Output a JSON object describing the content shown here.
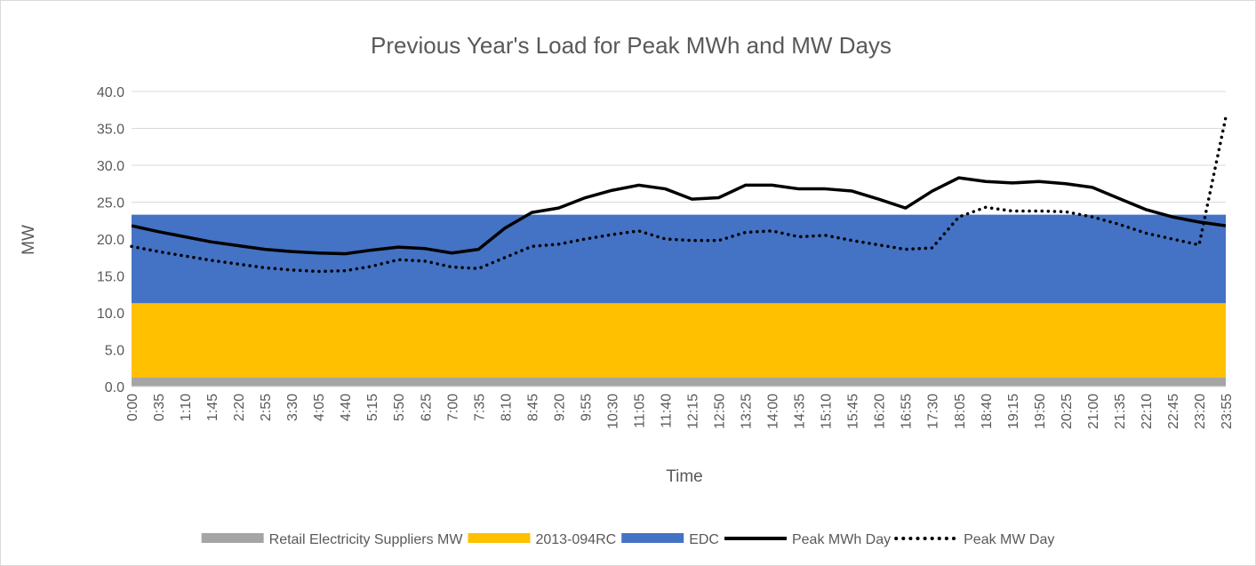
{
  "chart_data": {
    "type": "stacked-area-line",
    "title": "Previous Year's Load for Peak MWh and MW Days",
    "x_label": "Time",
    "y_label": "MW",
    "categories": [
      "0:00",
      "0:35",
      "1:10",
      "1:45",
      "2:20",
      "2:55",
      "3:30",
      "4:05",
      "4:40",
      "5:15",
      "5:50",
      "6:25",
      "7:00",
      "7:35",
      "8:10",
      "8:45",
      "9:20",
      "9:55",
      "10:30",
      "11:05",
      "11:40",
      "12:15",
      "12:50",
      "13:25",
      "14:00",
      "14:35",
      "15:10",
      "15:45",
      "16:20",
      "16:55",
      "17:30",
      "18:05",
      "18:40",
      "19:15",
      "19:50",
      "20:25",
      "21:00",
      "21:35",
      "22:10",
      "22:45",
      "23:20",
      "23:55"
    ],
    "ylim": [
      0,
      40
    ],
    "yticks": [
      {
        "value": 0,
        "label": "0.0"
      },
      {
        "value": 5,
        "label": "5.0"
      },
      {
        "value": 10,
        "label": "10.0"
      },
      {
        "value": 15,
        "label": "15.0"
      },
      {
        "value": 20,
        "label": "20.0"
      },
      {
        "value": 25,
        "label": "25.0"
      },
      {
        "value": 30,
        "label": "30.0"
      },
      {
        "value": 35,
        "label": "35.0"
      },
      {
        "value": 40,
        "label": "40.0"
      }
    ],
    "grid": true,
    "legend": "bottom",
    "series": [
      {
        "name": "Retail Electricity Suppliers MW",
        "kind": "area",
        "color": "#a5a5a5",
        "values": [
          1.2,
          1.2,
          1.2,
          1.2,
          1.2,
          1.2,
          1.2,
          1.2,
          1.2,
          1.2,
          1.2,
          1.2,
          1.2,
          1.2,
          1.2,
          1.2,
          1.2,
          1.2,
          1.2,
          1.2,
          1.2,
          1.2,
          1.2,
          1.2,
          1.2,
          1.2,
          1.2,
          1.2,
          1.2,
          1.2,
          1.2,
          1.2,
          1.2,
          1.2,
          1.2,
          1.2,
          1.2,
          1.2,
          1.2,
          1.2,
          1.2,
          1.2
        ]
      },
      {
        "name": "2013-094RC",
        "kind": "area",
        "color": "#ffc000",
        "values": [
          10.1,
          10.1,
          10.1,
          10.1,
          10.1,
          10.1,
          10.1,
          10.1,
          10.1,
          10.1,
          10.1,
          10.1,
          10.1,
          10.1,
          10.1,
          10.1,
          10.1,
          10.1,
          10.1,
          10.1,
          10.1,
          10.1,
          10.1,
          10.1,
          10.1,
          10.1,
          10.1,
          10.1,
          10.1,
          10.1,
          10.1,
          10.1,
          10.1,
          10.1,
          10.1,
          10.1,
          10.1,
          10.1,
          10.1,
          10.1,
          10.1,
          10.1
        ]
      },
      {
        "name": "EDC",
        "kind": "area",
        "color": "#4472c4",
        "values": [
          12.0,
          12.0,
          12.0,
          12.0,
          12.0,
          12.0,
          12.0,
          12.0,
          12.0,
          12.0,
          12.0,
          12.0,
          12.0,
          12.0,
          12.0,
          12.0,
          12.0,
          12.0,
          12.0,
          12.0,
          12.0,
          12.0,
          12.0,
          12.0,
          12.0,
          12.0,
          12.0,
          12.0,
          12.0,
          12.0,
          12.0,
          12.0,
          12.0,
          12.0,
          12.0,
          12.0,
          12.0,
          12.0,
          12.0,
          12.0,
          12.0,
          12.0
        ]
      },
      {
        "name": "Peak MWh Day",
        "kind": "line",
        "dash": "solid",
        "color": "#000000",
        "values": [
          21.8,
          21.0,
          20.3,
          19.6,
          19.1,
          18.6,
          18.3,
          18.1,
          18.0,
          18.5,
          18.9,
          18.7,
          18.1,
          18.6,
          21.5,
          23.6,
          24.2,
          25.6,
          26.6,
          27.3,
          26.8,
          25.4,
          25.6,
          27.3,
          27.3,
          26.8,
          26.8,
          26.5,
          25.4,
          24.2,
          26.5,
          28.3,
          27.8,
          27.6,
          27.8,
          27.5,
          27.0,
          25.5,
          24.0,
          23.0,
          22.3,
          21.8
        ]
      },
      {
        "name": "Peak MW Day",
        "kind": "line",
        "dash": "dotted",
        "color": "#000000",
        "values": [
          19.0,
          18.3,
          17.7,
          17.1,
          16.6,
          16.1,
          15.8,
          15.6,
          15.7,
          16.3,
          17.2,
          17.0,
          16.2,
          16.0,
          17.5,
          19.0,
          19.3,
          20.0,
          20.6,
          21.1,
          20.0,
          19.8,
          19.8,
          20.9,
          21.1,
          20.3,
          20.5,
          19.8,
          19.2,
          18.6,
          18.8,
          23.0,
          24.3,
          23.8,
          23.8,
          23.7,
          23.0,
          22.0,
          20.8,
          20.0,
          19.2,
          36.5
        ]
      }
    ]
  }
}
